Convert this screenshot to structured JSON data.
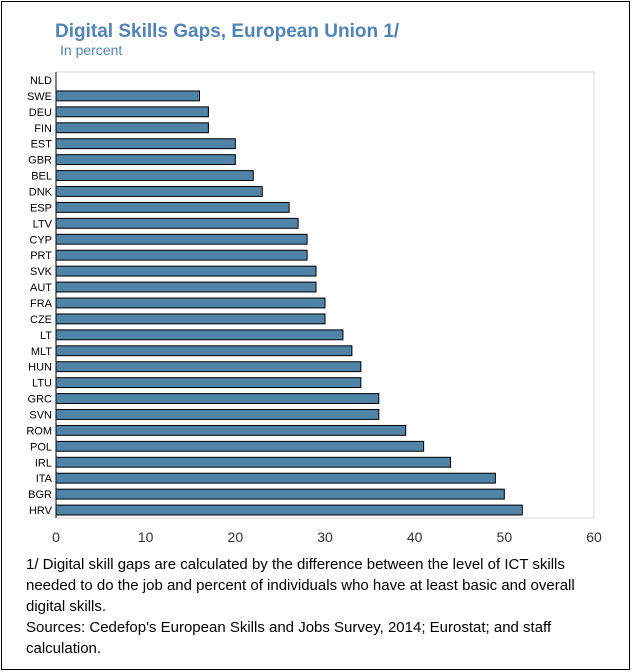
{
  "chart_data": {
    "type": "bar",
    "orientation": "horizontal",
    "title": "Digital Skills Gaps, European Union 1/",
    "subtitle": "In percent",
    "xlabel": "",
    "ylabel": "",
    "xlim": [
      0,
      60
    ],
    "xticks": [
      0,
      10,
      20,
      30,
      40,
      50,
      60
    ],
    "grid": false,
    "bar_color": "#4f84a8",
    "categories": [
      "NLD",
      "SWE",
      "DEU",
      "FIN",
      "EST",
      "GBR",
      "BEL",
      "DNK",
      "ESP",
      "LTV",
      "CYP",
      "PRT",
      "SVK",
      "AUT",
      "FRA",
      "CZE",
      "LT",
      "MLT",
      "HUN",
      "LTU",
      "GRC",
      "SVN",
      "ROM",
      "POL",
      "IRL",
      "ITA",
      "BGR",
      "HRV"
    ],
    "values": [
      0,
      16,
      17,
      17,
      20,
      20,
      22,
      23,
      26,
      27,
      28,
      28,
      29,
      29,
      30,
      30,
      32,
      33,
      34,
      34,
      36,
      36,
      39,
      41,
      44,
      49,
      50,
      52
    ]
  },
  "footnote": "1/ Digital skill gaps are calculated by the difference between the level of ICT skills needed to do the job and percent of individuals who have at least basic and overall digital skills.",
  "sources": "Sources: Cedefop's European Skills and Jobs Survey, 2014; Eurostat; and staff calculation."
}
